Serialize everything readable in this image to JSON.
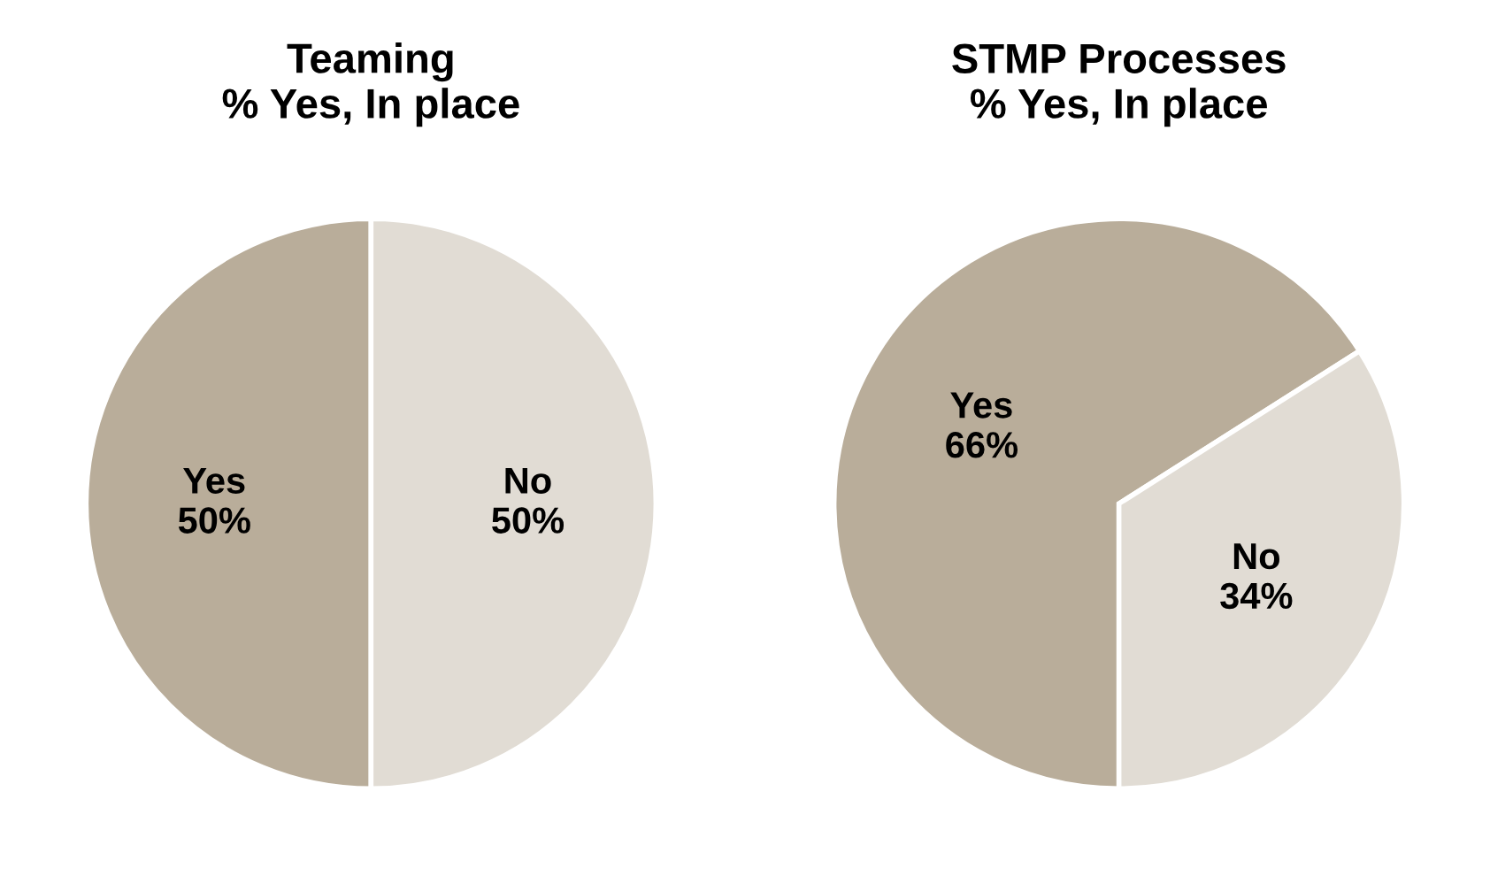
{
  "chart_data": [
    {
      "type": "pie",
      "title": "Teaming\n% Yes, In place",
      "categories": [
        "Yes",
        "No"
      ],
      "values": [
        50,
        50
      ],
      "value_labels": [
        "50%",
        "50%"
      ],
      "colors": [
        "#b9ad9a",
        "#e1dcd4"
      ]
    },
    {
      "type": "pie",
      "title": "STMP Processes\n% Yes, In place",
      "categories": [
        "Yes",
        "No"
      ],
      "values": [
        66,
        34
      ],
      "value_labels": [
        "66%",
        "34%"
      ],
      "colors": [
        "#b9ad9a",
        "#e1dcd4"
      ]
    }
  ]
}
